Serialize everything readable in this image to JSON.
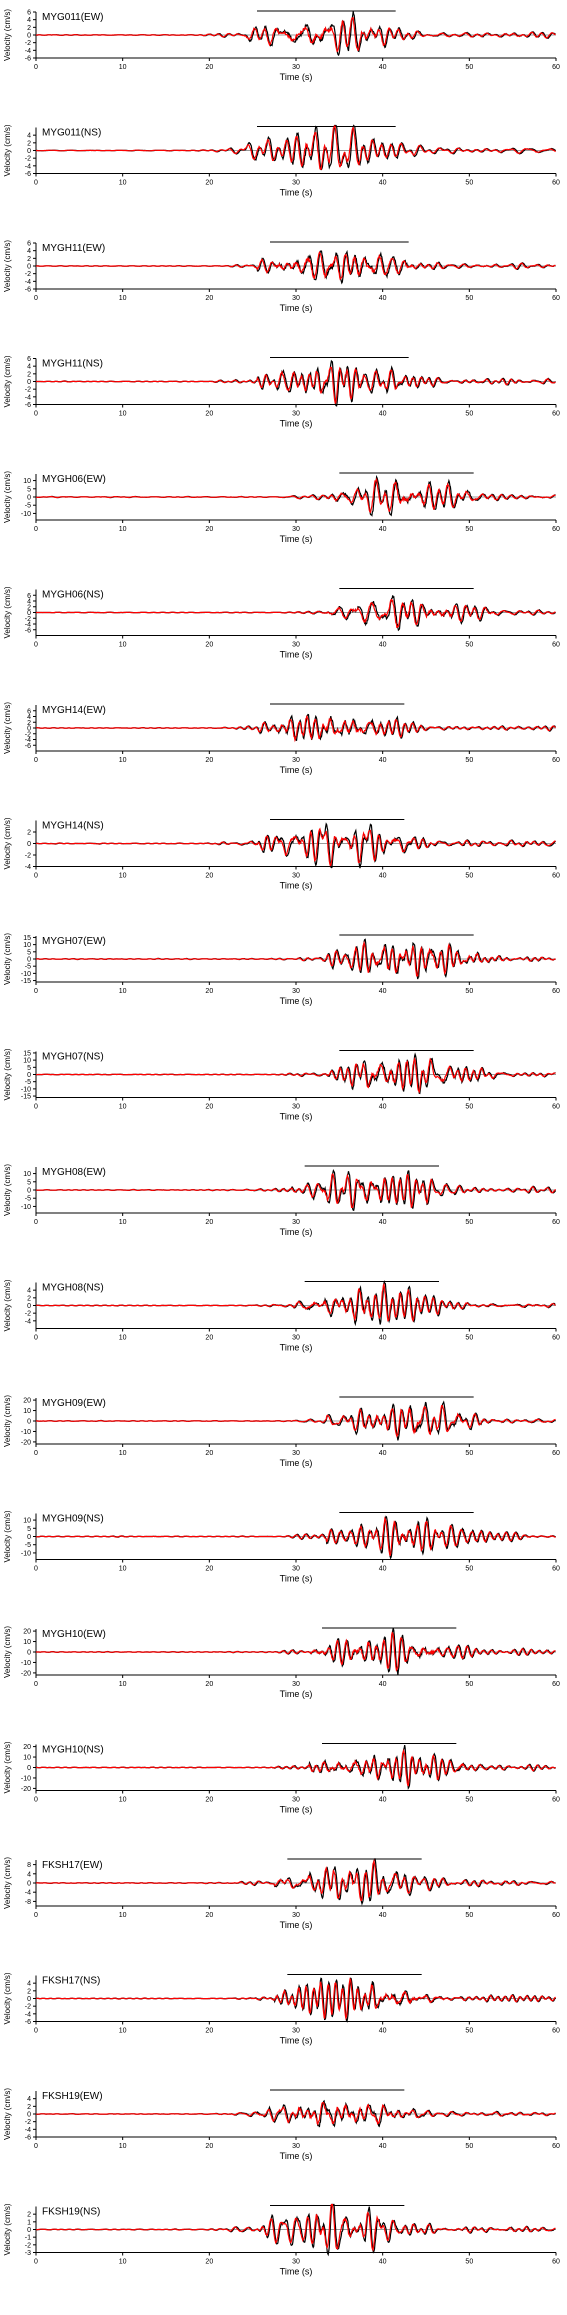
{
  "figure": {
    "ylabel": "Velocity (cm/s)",
    "xlabel": "Time (s)",
    "colors": {
      "observed": "#000000",
      "synthetic": "#ff0000"
    }
  },
  "chart_data": [
    {
      "type": "line",
      "title": "MYG011(EW)",
      "xlabel": "Time (s)",
      "ylabel": "Velocity (cm/s)",
      "xlim": [
        0,
        60
      ],
      "ylim": [
        -6,
        6
      ],
      "xticks": [
        "0",
        "10",
        "20",
        "30",
        "40",
        "50",
        "60"
      ],
      "yticks": [
        "6",
        "4",
        "2",
        "0",
        "-2",
        "-4",
        "-6"
      ],
      "window": [
        25.5,
        41.5
      ],
      "onset": 24,
      "peak": 5.6,
      "series": [
        {
          "color": "#000000"
        },
        {
          "color": "#ff0000"
        }
      ]
    },
    {
      "type": "line",
      "title": "MYG011(NS)",
      "xlabel": "Time (s)",
      "ylabel": "Velocity (cm/s)",
      "xlim": [
        0,
        60
      ],
      "ylim": [
        -6,
        6
      ],
      "xticks": [
        "0",
        "10",
        "20",
        "30",
        "40",
        "50",
        "60"
      ],
      "yticks": [
        "4",
        "2",
        "0",
        "-2",
        "-4",
        "-6"
      ],
      "window": [
        25.5,
        41.5
      ],
      "onset": 24,
      "peak": 5.0,
      "series": [
        {
          "color": "#000000"
        },
        {
          "color": "#ff0000"
        }
      ]
    },
    {
      "type": "line",
      "title": "MYGH11(EW)",
      "xlabel": "Time (s)",
      "ylabel": "Velocity (cm/s)",
      "xlim": [
        0,
        60
      ],
      "ylim": [
        -6,
        6
      ],
      "xticks": [
        "0",
        "10",
        "20",
        "30",
        "40",
        "50",
        "60"
      ],
      "yticks": [
        "6",
        "4",
        "2",
        "0",
        "-2",
        "-4",
        "-6"
      ],
      "window": [
        27,
        43
      ],
      "onset": 25.5,
      "peak": 5.5,
      "series": [
        {
          "color": "#000000"
        },
        {
          "color": "#ff0000"
        }
      ]
    },
    {
      "type": "line",
      "title": "MYGH11(NS)",
      "xlabel": "Time (s)",
      "ylabel": "Velocity (cm/s)",
      "xlim": [
        0,
        60
      ],
      "ylim": [
        -6,
        6
      ],
      "xticks": [
        "0",
        "10",
        "20",
        "30",
        "40",
        "50",
        "60"
      ],
      "yticks": [
        "6",
        "4",
        "2",
        "0",
        "-2",
        "-4",
        "-6"
      ],
      "window": [
        27,
        43
      ],
      "onset": 25.5,
      "peak": 5.3,
      "series": [
        {
          "color": "#000000"
        },
        {
          "color": "#ff0000"
        }
      ]
    },
    {
      "type": "line",
      "title": "MYGH06(EW)",
      "xlabel": "Time (s)",
      "ylabel": "Velocity (cm/s)",
      "xlim": [
        0,
        60
      ],
      "ylim": [
        -14,
        14
      ],
      "xticks": [
        "0",
        "10",
        "20",
        "30",
        "40",
        "50",
        "60"
      ],
      "yticks": [
        "10",
        "5",
        "0",
        "-5",
        "-10"
      ],
      "window": [
        35,
        50.5
      ],
      "onset": 33.5,
      "peak": 11.5,
      "series": [
        {
          "color": "#000000"
        },
        {
          "color": "#ff0000"
        }
      ]
    },
    {
      "type": "line",
      "title": "MYGH06(NS)",
      "xlabel": "Time (s)",
      "ylabel": "Velocity (cm/s)",
      "xlim": [
        0,
        60
      ],
      "ylim": [
        -8,
        8
      ],
      "xticks": [
        "0",
        "10",
        "20",
        "30",
        "40",
        "50",
        "60"
      ],
      "yticks": [
        "6",
        "4",
        "2",
        "0",
        "-2",
        "-4",
        "-6"
      ],
      "window": [
        35,
        50.5
      ],
      "onset": 33.5,
      "peak": 6.5,
      "series": [
        {
          "color": "#000000"
        },
        {
          "color": "#ff0000"
        }
      ]
    },
    {
      "type": "line",
      "title": "MYGH14(EW)",
      "xlabel": "Time (s)",
      "ylabel": "Velocity (cm/s)",
      "xlim": [
        0,
        60
      ],
      "ylim": [
        -8,
        8
      ],
      "xticks": [
        "0",
        "10",
        "20",
        "30",
        "40",
        "50",
        "60"
      ],
      "yticks": [
        "6",
        "4",
        "2",
        "0",
        "-2",
        "-4",
        "-6"
      ],
      "window": [
        27,
        42.5
      ],
      "onset": 25.5,
      "peak": 6.5,
      "series": [
        {
          "color": "#000000"
        },
        {
          "color": "#ff0000"
        }
      ]
    },
    {
      "type": "line",
      "title": "MYGH14(NS)",
      "xlabel": "Time (s)",
      "ylabel": "Velocity (cm/s)",
      "xlim": [
        0,
        60
      ],
      "ylim": [
        -4,
        4
      ],
      "xticks": [
        "0",
        "10",
        "20",
        "30",
        "40",
        "50",
        "60"
      ],
      "yticks": [
        "2",
        "0",
        "-2",
        "-4"
      ],
      "window": [
        27,
        42.5
      ],
      "onset": 25.5,
      "peak": 3.2,
      "series": [
        {
          "color": "#000000"
        },
        {
          "color": "#ff0000"
        }
      ]
    },
    {
      "type": "line",
      "title": "MYGH07(EW)",
      "xlabel": "Time (s)",
      "ylabel": "Velocity (cm/s)",
      "xlim": [
        0,
        60
      ],
      "ylim": [
        -16,
        16
      ],
      "xticks": [
        "0",
        "10",
        "20",
        "30",
        "40",
        "50",
        "60"
      ],
      "yticks": [
        "15",
        "10",
        "5",
        "0",
        "-5",
        "-10",
        "-15"
      ],
      "window": [
        35,
        50.5
      ],
      "onset": 33.5,
      "peak": 14,
      "series": [
        {
          "color": "#000000"
        },
        {
          "color": "#ff0000"
        }
      ]
    },
    {
      "type": "line",
      "title": "MYGH07(NS)",
      "xlabel": "Time (s)",
      "ylabel": "Velocity (cm/s)",
      "xlim": [
        0,
        60
      ],
      "ylim": [
        -16,
        16
      ],
      "xticks": [
        "0",
        "10",
        "20",
        "30",
        "40",
        "50",
        "60"
      ],
      "yticks": [
        "15",
        "10",
        "5",
        "0",
        "-5",
        "-10",
        "-15"
      ],
      "window": [
        35,
        50.5
      ],
      "onset": 33.5,
      "peak": 13,
      "series": [
        {
          "color": "#000000"
        },
        {
          "color": "#ff0000"
        }
      ]
    },
    {
      "type": "line",
      "title": "MYGH08(EW)",
      "xlabel": "Time (s)",
      "ylabel": "Velocity (cm/s)",
      "xlim": [
        0,
        60
      ],
      "ylim": [
        -14,
        14
      ],
      "xticks": [
        "0",
        "10",
        "20",
        "30",
        "40",
        "50",
        "60"
      ],
      "yticks": [
        "10",
        "5",
        "0",
        "-5",
        "-10"
      ],
      "window": [
        31,
        46.5
      ],
      "onset": 29.5,
      "peak": 11,
      "series": [
        {
          "color": "#000000"
        },
        {
          "color": "#ff0000"
        }
      ]
    },
    {
      "type": "line",
      "title": "MYGH08(NS)",
      "xlabel": "Time (s)",
      "ylabel": "Velocity (cm/s)",
      "xlim": [
        0,
        60
      ],
      "ylim": [
        -6,
        6
      ],
      "xticks": [
        "0",
        "10",
        "20",
        "30",
        "40",
        "50",
        "60"
      ],
      "yticks": [
        "4",
        "2",
        "0",
        "-2",
        "-4"
      ],
      "window": [
        31,
        46.5
      ],
      "onset": 29.5,
      "peak": 5.5,
      "series": [
        {
          "color": "#000000"
        },
        {
          "color": "#ff0000"
        }
      ]
    },
    {
      "type": "line",
      "title": "MYGH09(EW)",
      "xlabel": "Time (s)",
      "ylabel": "Velocity (cm/s)",
      "xlim": [
        0,
        60
      ],
      "ylim": [
        -22,
        22
      ],
      "xticks": [
        "0",
        "10",
        "20",
        "30",
        "40",
        "50",
        "60"
      ],
      "yticks": [
        "20",
        "10",
        "0",
        "-10",
        "-20"
      ],
      "window": [
        35,
        50.5
      ],
      "onset": 33.5,
      "peak": 18,
      "series": [
        {
          "color": "#000000"
        },
        {
          "color": "#ff0000"
        }
      ]
    },
    {
      "type": "line",
      "title": "MYGH09(NS)",
      "xlabel": "Time (s)",
      "ylabel": "Velocity (cm/s)",
      "xlim": [
        0,
        60
      ],
      "ylim": [
        -14,
        14
      ],
      "xticks": [
        "0",
        "10",
        "20",
        "30",
        "40",
        "50",
        "60"
      ],
      "yticks": [
        "10",
        "5",
        "0",
        "-5",
        "-10"
      ],
      "window": [
        35,
        50.5
      ],
      "onset": 33.5,
      "peak": 12,
      "series": [
        {
          "color": "#000000"
        },
        {
          "color": "#ff0000"
        }
      ]
    },
    {
      "type": "line",
      "title": "MYGH10(EW)",
      "xlabel": "Time (s)",
      "ylabel": "Velocity (cm/s)",
      "xlim": [
        0,
        60
      ],
      "ylim": [
        -22,
        22
      ],
      "xticks": [
        "0",
        "10",
        "20",
        "30",
        "40",
        "50",
        "60"
      ],
      "yticks": [
        "20",
        "10",
        "0",
        "-10",
        "-20"
      ],
      "window": [
        33,
        48.5
      ],
      "onset": 31.5,
      "peak": 20,
      "series": [
        {
          "color": "#000000"
        },
        {
          "color": "#ff0000"
        }
      ]
    },
    {
      "type": "line",
      "title": "MYGH10(NS)",
      "xlabel": "Time (s)",
      "ylabel": "Velocity (cm/s)",
      "xlim": [
        0,
        60
      ],
      "ylim": [
        -22,
        22
      ],
      "xticks": [
        "0",
        "10",
        "20",
        "30",
        "40",
        "50",
        "60"
      ],
      "yticks": [
        "20",
        "10",
        "0",
        "-10",
        "-20"
      ],
      "window": [
        33,
        48.5
      ],
      "onset": 31.5,
      "peak": 19,
      "series": [
        {
          "color": "#000000"
        },
        {
          "color": "#ff0000"
        }
      ]
    },
    {
      "type": "line",
      "title": "FKSH17(EW)",
      "xlabel": "Time (s)",
      "ylabel": "Velocity (cm/s)",
      "xlim": [
        0,
        60
      ],
      "ylim": [
        -10,
        10
      ],
      "xticks": [
        "0",
        "10",
        "20",
        "30",
        "40",
        "50",
        "60"
      ],
      "yticks": [
        "8",
        "4",
        "0",
        "-4",
        "-8"
      ],
      "window": [
        29,
        44.5
      ],
      "onset": 27.5,
      "peak": 8,
      "series": [
        {
          "color": "#000000"
        },
        {
          "color": "#ff0000"
        }
      ]
    },
    {
      "type": "line",
      "title": "FKSH17(NS)",
      "xlabel": "Time (s)",
      "ylabel": "Velocity (cm/s)",
      "xlim": [
        0,
        60
      ],
      "ylim": [
        -6,
        6
      ],
      "xticks": [
        "0",
        "10",
        "20",
        "30",
        "40",
        "50",
        "60"
      ],
      "yticks": [
        "4",
        "2",
        "0",
        "-2",
        "-4",
        "-6"
      ],
      "window": [
        29,
        44.5
      ],
      "onset": 27.5,
      "peak": 5.5,
      "series": [
        {
          "color": "#000000"
        },
        {
          "color": "#ff0000"
        }
      ]
    },
    {
      "type": "line",
      "title": "FKSH19(EW)",
      "xlabel": "Time (s)",
      "ylabel": "Velocity (cm/s)",
      "xlim": [
        0,
        60
      ],
      "ylim": [
        -6,
        6
      ],
      "xticks": [
        "0",
        "10",
        "20",
        "30",
        "40",
        "50",
        "60"
      ],
      "yticks": [
        "4",
        "2",
        "0",
        "-2",
        "-4",
        "-6"
      ],
      "window": [
        27,
        42.5
      ],
      "onset": 25.5,
      "peak": 4.6,
      "series": [
        {
          "color": "#000000"
        },
        {
          "color": "#ff0000"
        }
      ]
    },
    {
      "type": "line",
      "title": "FKSH19(NS)",
      "xlabel": "Time (s)",
      "ylabel": "Velocity (cm/s)",
      "xlim": [
        0,
        60
      ],
      "ylim": [
        -3,
        3
      ],
      "xticks": [
        "0",
        "10",
        "20",
        "30",
        "40",
        "50",
        "60"
      ],
      "yticks": [
        "2",
        "1",
        "0",
        "-1",
        "-2",
        "-3"
      ],
      "window": [
        27,
        42.5
      ],
      "onset": 25.5,
      "peak": 2.5,
      "series": [
        {
          "color": "#000000"
        },
        {
          "color": "#ff0000"
        }
      ]
    }
  ]
}
